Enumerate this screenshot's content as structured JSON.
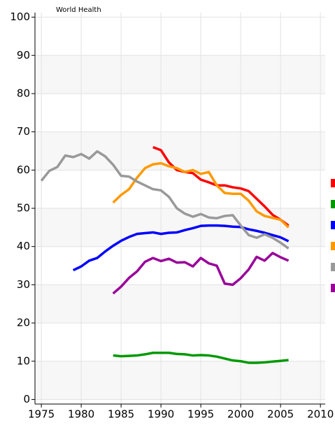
{
  "chart_data": {
    "type": "line",
    "annotation": "World Health",
    "x": [
      1975,
      1976,
      1977,
      1978,
      1979,
      1980,
      1981,
      1982,
      1983,
      1984,
      1985,
      1986,
      1987,
      1988,
      1989,
      1990,
      1991,
      1992,
      1993,
      1994,
      1995,
      1996,
      1997,
      1998,
      1999,
      2000,
      2001,
      2002,
      2003,
      2004,
      2005,
      2006
    ],
    "series": [
      {
        "color": "#ff0000",
        "values": [
          null,
          null,
          null,
          null,
          null,
          null,
          null,
          null,
          null,
          null,
          null,
          null,
          null,
          null,
          66,
          65.2,
          62,
          60,
          59.5,
          59.2,
          57.5,
          56.8,
          56,
          56,
          55.5,
          55.2,
          54.5,
          52.5,
          50.5,
          48.3,
          47,
          45.5
        ]
      },
      {
        "color": "#009900",
        "values": [
          null,
          null,
          null,
          null,
          null,
          null,
          null,
          null,
          null,
          11.5,
          11.3,
          11.4,
          11.5,
          11.8,
          12.2,
          12.2,
          12.2,
          11.9,
          11.8,
          11.5,
          11.6,
          11.5,
          11.2,
          10.7,
          10.2,
          10,
          9.6,
          9.6,
          9.7,
          9.9,
          10.1,
          10.3
        ]
      },
      {
        "color": "#0000ff",
        "values": [
          null,
          null,
          null,
          null,
          33.8,
          34.8,
          36.3,
          37,
          38.7,
          40.2,
          41.5,
          42.5,
          43.3,
          43.5,
          43.7,
          43.3,
          43.6,
          43.7,
          44.3,
          44.8,
          45.4,
          45.5,
          45.5,
          45.4,
          45.2,
          45.1,
          44.5,
          44.1,
          43.6,
          43,
          42.4,
          41.4
        ]
      },
      {
        "color": "#ff9900",
        "values": [
          null,
          null,
          null,
          null,
          null,
          null,
          null,
          null,
          null,
          51.5,
          53.5,
          55,
          58,
          60.5,
          61.5,
          61.8,
          61,
          60.5,
          59.5,
          60,
          59,
          59.5,
          56,
          54,
          53.8,
          53.8,
          52,
          49.2,
          48,
          47.5,
          47,
          45
        ]
      },
      {
        "color": "#999999",
        "values": [
          57.2,
          59.8,
          60.8,
          63.8,
          63.4,
          64.2,
          63,
          64.9,
          63.6,
          61.4,
          58.5,
          58.3,
          57,
          56,
          55,
          54.7,
          53,
          50,
          48.6,
          47.8,
          48.5,
          47.6,
          47.4,
          48,
          48.2,
          45.5,
          43,
          42.3,
          43.2,
          42.3,
          41,
          39.5
        ]
      },
      {
        "color": "#990099",
        "values": [
          null,
          null,
          null,
          null,
          null,
          null,
          null,
          null,
          null,
          27.7,
          29.5,
          31.8,
          33.5,
          36,
          37,
          36.2,
          36.8,
          35.8,
          35.9,
          34.8,
          37,
          35.6,
          35,
          30.3,
          30,
          31.7,
          34,
          37.3,
          36.3,
          38.3,
          37.2,
          36.3
        ]
      }
    ],
    "xlim": [
      1974.2,
      2010.6
    ],
    "xticks": [
      1975,
      1980,
      1985,
      1990,
      1995,
      2000,
      2005,
      2010
    ],
    "ylim": [
      -1.2,
      101.2
    ],
    "yticks": [
      0,
      10,
      20,
      30,
      40,
      50,
      60,
      70,
      80,
      90,
      100
    ],
    "grid": true
  }
}
